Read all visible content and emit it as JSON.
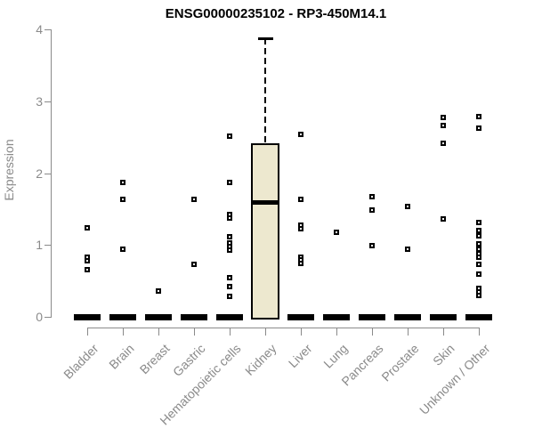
{
  "chart_data": {
    "type": "boxplot",
    "title": "ENSG00000235102 - RP3-450M14.1",
    "ylabel": "Expression",
    "ylim": [
      0,
      4
    ],
    "yticks": [
      0,
      1,
      2,
      3,
      4
    ],
    "grid": false,
    "legend": false,
    "categories": [
      "Bladder",
      "Brain",
      "Breast",
      "Gastric",
      "Hematopoietic cells",
      "Kidney",
      "Liver",
      "Lung",
      "Pancreas",
      "Prostate",
      "Skin",
      "Unknown / Other"
    ],
    "boxes": [
      {
        "category": "Bladder",
        "q1": 0,
        "median": 0,
        "q3": 0,
        "whisker_low": 0,
        "whisker_high": 0,
        "outliers": [
          1.24,
          0.83,
          0.78,
          0.66
        ]
      },
      {
        "category": "Brain",
        "q1": 0,
        "median": 0,
        "q3": 0,
        "whisker_low": 0,
        "whisker_high": 0,
        "outliers": [
          1.87,
          1.64,
          0.94
        ]
      },
      {
        "category": "Breast",
        "q1": 0,
        "median": 0,
        "q3": 0,
        "whisker_low": 0,
        "whisker_high": 0,
        "outliers": [
          0.36
        ]
      },
      {
        "category": "Gastric",
        "q1": 0,
        "median": 0,
        "q3": 0,
        "whisker_low": 0,
        "whisker_high": 0,
        "outliers": [
          1.63,
          0.73
        ]
      },
      {
        "category": "Hematopoietic cells",
        "q1": 0,
        "median": 0,
        "q3": 0,
        "whisker_low": 0,
        "whisker_high": 0,
        "outliers": [
          2.51,
          1.87,
          1.42,
          1.37,
          1.11,
          1.03,
          0.98,
          0.93,
          0.54,
          0.42,
          0.28
        ]
      },
      {
        "category": "Kidney",
        "q1": 0,
        "median": 1.58,
        "q3": 2.42,
        "whisker_low": 0,
        "whisker_high": 3.88,
        "outliers": []
      },
      {
        "category": "Liver",
        "q1": 0,
        "median": 0,
        "q3": 0,
        "whisker_low": 0,
        "whisker_high": 0,
        "outliers": [
          2.54,
          1.64,
          1.27,
          1.22,
          0.83,
          0.79,
          0.74
        ]
      },
      {
        "category": "Lung",
        "q1": 0,
        "median": 0,
        "q3": 0,
        "whisker_low": 0,
        "whisker_high": 0,
        "outliers": [
          1.18
        ]
      },
      {
        "category": "Pancreas",
        "q1": 0,
        "median": 0,
        "q3": 0,
        "whisker_low": 0,
        "whisker_high": 0,
        "outliers": [
          1.67,
          1.49,
          0.99
        ]
      },
      {
        "category": "Prostate",
        "q1": 0,
        "median": 0,
        "q3": 0,
        "whisker_low": 0,
        "whisker_high": 0,
        "outliers": [
          1.54,
          0.94
        ]
      },
      {
        "category": "Skin",
        "q1": 0,
        "median": 0,
        "q3": 0,
        "whisker_low": 0,
        "whisker_high": 0,
        "outliers": [
          2.78,
          2.66,
          2.41,
          1.36
        ]
      },
      {
        "category": "Unknown / Other",
        "q1": 0,
        "median": 0,
        "q3": 0,
        "whisker_low": 0,
        "whisker_high": 0,
        "outliers": [
          2.79,
          2.63,
          1.31,
          1.2,
          1.13,
          1.02,
          0.94,
          0.88,
          0.83,
          0.73,
          0.59,
          0.4,
          0.35,
          0.3
        ]
      }
    ],
    "colors": {
      "box_fill": "#EDE8CF",
      "box_border": "#000000",
      "median": "#000000",
      "collapsed_bar": "#000000",
      "axis": "#8A8A8A",
      "axis_text": "#8A8A8A",
      "title_text": "#000000",
      "background": "#FFFFFF"
    }
  }
}
